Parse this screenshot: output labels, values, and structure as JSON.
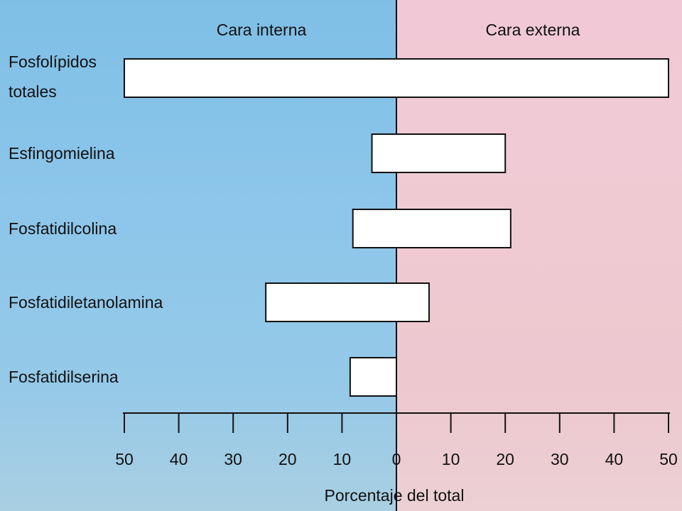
{
  "chart_data": {
    "type": "bar",
    "orientation": "horizontal-diverging",
    "headers": {
      "left": "Cara interna",
      "right": "Cara externa"
    },
    "categories": [
      [
        "Fosfolípidos",
        "totales"
      ],
      [
        "Esfingomielina"
      ],
      [
        "Fosfatidilcolina"
      ],
      [
        "Fosfatidiletanolamina"
      ],
      [
        "Fosfatidilserina"
      ]
    ],
    "series": [
      {
        "name": "Cara interna",
        "values": [
          50,
          4.5,
          8,
          24,
          8.5
        ]
      },
      {
        "name": "Cara externa",
        "values": [
          50,
          20,
          21,
          6,
          0
        ]
      }
    ],
    "xlabel": "Porcentaje del total",
    "xlim": [
      -50,
      50
    ],
    "tick_labels": [
      "50",
      "40",
      "30",
      "20",
      "10",
      "0",
      "10",
      "20",
      "30",
      "40",
      "50"
    ],
    "colors": {
      "left_panel": "#8cc6ea",
      "right_panel": "#f0cad3",
      "bar_fill": "#ffffff",
      "ink": "#111111"
    }
  }
}
